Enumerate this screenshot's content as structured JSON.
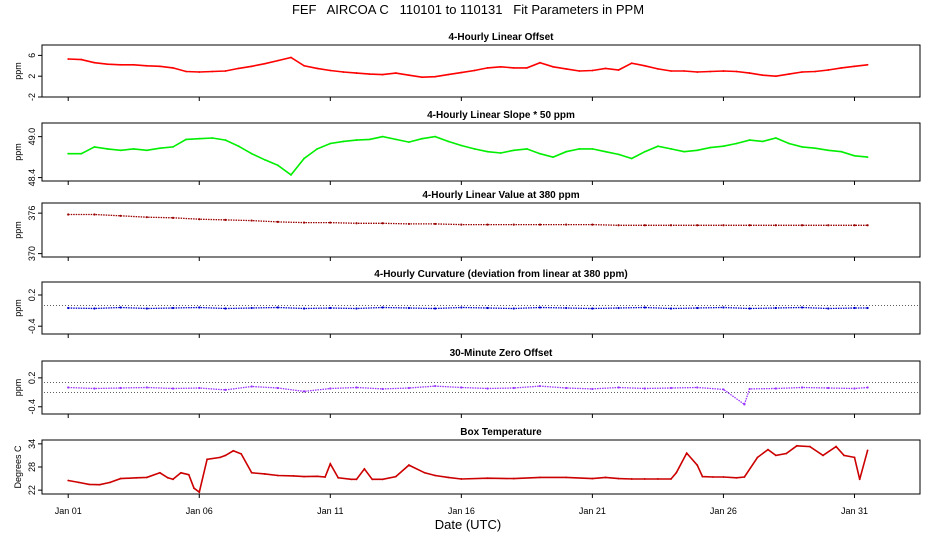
{
  "page": {
    "title": "FEF   AIRCOA C   110101 to 110131   Fit Parameters in PPM",
    "xlabel": "Date (UTC)"
  },
  "chart_data": [
    {
      "type": "line",
      "title": "4-Hourly Linear Offset",
      "ylabel": "ppm",
      "ylim": [
        -2,
        8
      ],
      "yticks": [
        -2,
        2,
        6
      ],
      "ytick_labels": [
        "-2",
        "2",
        "6"
      ],
      "color": "#ff0000",
      "marker": "line",
      "x": [
        1,
        1.5,
        2,
        2.5,
        3,
        3.5,
        4,
        4.5,
        5,
        5.5,
        6,
        6.5,
        7,
        7.5,
        8,
        8.5,
        9,
        9.5,
        10,
        10.5,
        11,
        11.5,
        12,
        12.5,
        13,
        13.5,
        14,
        14.5,
        15,
        15.5,
        16,
        16.5,
        17,
        17.5,
        18,
        18.5,
        19,
        19.5,
        20,
        20.5,
        21,
        21.5,
        22,
        22.5,
        23,
        23.5,
        24,
        24.5,
        25,
        25.5,
        26,
        26.5,
        27,
        27.5,
        28,
        28.5,
        29,
        29.5,
        30,
        30.5,
        31,
        31.5
      ],
      "y": [
        5.3,
        5.2,
        4.6,
        4.3,
        4.2,
        4.2,
        4.0,
        3.9,
        3.6,
        2.9,
        2.8,
        2.9,
        3.0,
        3.5,
        3.9,
        4.4,
        5.0,
        5.6,
        4.0,
        3.5,
        3.1,
        2.8,
        2.6,
        2.4,
        2.3,
        2.6,
        2.2,
        1.8,
        1.9,
        2.3,
        2.7,
        3.1,
        3.6,
        3.8,
        3.6,
        3.6,
        4.6,
        3.8,
        3.4,
        3.0,
        3.1,
        3.5,
        3.2,
        4.5,
        4.0,
        3.4,
        3.0,
        3.0,
        2.8,
        2.9,
        3.0,
        2.9,
        2.6,
        2.2,
        2.0,
        2.4,
        2.8,
        2.9,
        3.2,
        3.6,
        3.9,
        4.2
      ]
    },
    {
      "type": "line",
      "title": "4-Hourly Linear Slope * 50 ppm",
      "ylabel": "ppm",
      "ylim": [
        48.35,
        49.2
      ],
      "yticks": [
        48.4,
        49.0
      ],
      "ytick_labels": [
        "48.4",
        "49.0"
      ],
      "color": "#00ee00",
      "marker": "line",
      "x": [
        1,
        1.5,
        2,
        2.5,
        3,
        3.5,
        4,
        4.5,
        5,
        5.5,
        6,
        6.5,
        7,
        7.5,
        8,
        8.5,
        9,
        9.5,
        10,
        10.5,
        11,
        11.5,
        12,
        12.5,
        13,
        13.5,
        14,
        14.5,
        15,
        15.5,
        16,
        16.5,
        17,
        17.5,
        18,
        18.5,
        19,
        19.5,
        20,
        20.5,
        21,
        21.5,
        22,
        22.5,
        23,
        23.5,
        24,
        24.5,
        25,
        25.5,
        26,
        26.5,
        27,
        27.5,
        28,
        28.5,
        29,
        29.5,
        30,
        30.5,
        31,
        31.5
      ],
      "y": [
        48.75,
        48.75,
        48.85,
        48.82,
        48.8,
        48.82,
        48.8,
        48.83,
        48.85,
        48.96,
        48.97,
        48.98,
        48.95,
        48.86,
        48.75,
        48.66,
        48.58,
        48.44,
        48.68,
        48.82,
        48.9,
        48.93,
        48.95,
        48.96,
        49.0,
        48.96,
        48.92,
        48.97,
        49.0,
        48.93,
        48.87,
        48.82,
        48.78,
        48.76,
        48.8,
        48.82,
        48.75,
        48.7,
        48.78,
        48.82,
        48.82,
        48.78,
        48.74,
        48.68,
        48.78,
        48.86,
        48.82,
        48.78,
        48.8,
        48.84,
        48.86,
        48.9,
        48.95,
        48.93,
        48.98,
        48.9,
        48.85,
        48.83,
        48.8,
        48.78,
        48.72,
        48.7
      ]
    },
    {
      "type": "scatter",
      "title": "4-Hourly Linear Value at 380 ppm",
      "ylabel": "ppm",
      "ylim": [
        369.5,
        377.5
      ],
      "yticks": [
        370,
        376
      ],
      "ytick_labels": [
        "370",
        "376"
      ],
      "color": "#990000",
      "marker": "dots",
      "x": [
        1,
        2,
        3,
        4,
        5,
        6,
        7,
        8,
        9,
        10,
        11,
        12,
        13,
        14,
        15,
        16,
        17,
        18,
        19,
        20,
        21,
        22,
        23,
        24,
        25,
        26,
        27,
        28,
        29,
        30,
        31,
        31.5
      ],
      "y": [
        375.8,
        375.8,
        375.6,
        375.4,
        375.3,
        375.1,
        375.0,
        374.9,
        374.7,
        374.6,
        374.6,
        374.5,
        374.5,
        374.4,
        374.4,
        374.3,
        374.3,
        374.3,
        374.3,
        374.3,
        374.3,
        374.2,
        374.2,
        374.2,
        374.2,
        374.2,
        374.2,
        374.2,
        374.2,
        374.2,
        374.2,
        374.2
      ]
    },
    {
      "type": "scatter",
      "title": "4-Hourly Curvature (deviation from linear at 380 ppm)",
      "ylabel": "ppm",
      "ylim": [
        -0.55,
        0.45
      ],
      "yticks": [
        -0.4,
        0.2
      ],
      "ytick_labels": [
        "-0.4",
        "0.2"
      ],
      "color": "#0000cc",
      "marker": "dots",
      "refline": 0,
      "x": [
        1,
        2,
        3,
        4,
        5,
        6,
        7,
        8,
        9,
        10,
        11,
        12,
        13,
        14,
        15,
        16,
        17,
        18,
        19,
        20,
        21,
        22,
        23,
        24,
        25,
        26,
        27,
        28,
        29,
        30,
        31,
        31.5
      ],
      "y": [
        -0.05,
        -0.06,
        -0.04,
        -0.06,
        -0.05,
        -0.04,
        -0.06,
        -0.05,
        -0.04,
        -0.06,
        -0.05,
        -0.06,
        -0.04,
        -0.05,
        -0.06,
        -0.04,
        -0.05,
        -0.06,
        -0.04,
        -0.05,
        -0.06,
        -0.05,
        -0.04,
        -0.06,
        -0.05,
        -0.04,
        -0.06,
        -0.05,
        -0.04,
        -0.06,
        -0.05,
        -0.05
      ]
    },
    {
      "type": "scatter",
      "title": "30-Minute Zero Offset",
      "ylabel": "ppm",
      "ylim": [
        -0.55,
        0.55
      ],
      "yticks": [
        -0.4,
        0.2
      ],
      "ytick_labels": [
        "-0.4",
        "0.2"
      ],
      "color": "#9933ff",
      "marker": "dots",
      "refband": [
        -0.1,
        0.1
      ],
      "x": [
        1,
        2,
        3,
        4,
        5,
        6,
        7,
        8,
        9,
        10,
        11,
        12,
        13,
        14,
        15,
        16,
        17,
        18,
        19,
        20,
        21,
        22,
        23,
        24,
        25,
        26,
        26.8,
        27,
        28,
        29,
        30,
        31,
        31.5
      ],
      "y": [
        0.0,
        -0.02,
        -0.01,
        0.0,
        -0.02,
        -0.01,
        -0.05,
        0.02,
        -0.01,
        -0.08,
        -0.02,
        0.0,
        -0.03,
        -0.01,
        0.03,
        0.0,
        -0.02,
        -0.01,
        0.03,
        -0.01,
        -0.03,
        0.0,
        -0.02,
        -0.01,
        0.0,
        -0.04,
        -0.35,
        -0.03,
        -0.02,
        0.0,
        -0.01,
        -0.02,
        0.0
      ]
    },
    {
      "type": "line",
      "title": "Box Temperature",
      "ylabel": "Degrees C",
      "ylim": [
        21,
        35
      ],
      "yticks": [
        22,
        28,
        34
      ],
      "ytick_labels": [
        "22",
        "28",
        "34"
      ],
      "color": "#cc0000",
      "marker": "line",
      "x": [
        1,
        1.4,
        1.8,
        2.2,
        2.6,
        3,
        3.6,
        4,
        4.5,
        4.8,
        5,
        5.3,
        5.6,
        5.8,
        6,
        6.3,
        6.8,
        7,
        7.3,
        7.6,
        8,
        8.5,
        9,
        9.6,
        10,
        10.5,
        10.8,
        11,
        11.3,
        11.8,
        12,
        12.3,
        12.6,
        13,
        13.5,
        14,
        14.6,
        15,
        15.5,
        16,
        17,
        18,
        19,
        20,
        21,
        21.5,
        22,
        22.5,
        23,
        23.5,
        24,
        24.2,
        24.6,
        25,
        25.2,
        25.6,
        26,
        26.5,
        26.8,
        27.3,
        27.7,
        28,
        28.4,
        28.8,
        29.3,
        29.8,
        30.3,
        30.6,
        31,
        31.2,
        31.5
      ],
      "y": [
        24.5,
        24,
        23.5,
        23.4,
        24,
        25,
        25.2,
        25.3,
        26.5,
        25.2,
        24.8,
        26.5,
        26,
        22.5,
        21.5,
        30,
        30.5,
        31,
        32.2,
        31.4,
        26.5,
        26.2,
        25.8,
        25.7,
        25.5,
        25.6,
        25.4,
        28.8,
        25.2,
        24.8,
        24.8,
        27.5,
        24.8,
        24.8,
        25.5,
        28.5,
        26.5,
        25.8,
        25.3,
        24.9,
        25.1,
        25.0,
        25.3,
        25.3,
        25.0,
        25.3,
        25.0,
        24.9,
        24.9,
        24.9,
        24.9,
        26.5,
        31.6,
        28.5,
        25.5,
        25.4,
        25.4,
        25.2,
        25.4,
        30.5,
        32.5,
        31.0,
        31.5,
        33.5,
        33.3,
        31.0,
        33.3,
        31.0,
        30.5,
        24.8,
        32.3
      ]
    }
  ],
  "x_axis": {
    "ticks": [
      1,
      6,
      11,
      16,
      21,
      26,
      31
    ],
    "tick_labels": [
      "Jan 01",
      "Jan 06",
      "Jan 11",
      "Jan 16",
      "Jan 21",
      "Jan 26",
      "Jan 31"
    ],
    "range": [
      0,
      33.5
    ]
  }
}
